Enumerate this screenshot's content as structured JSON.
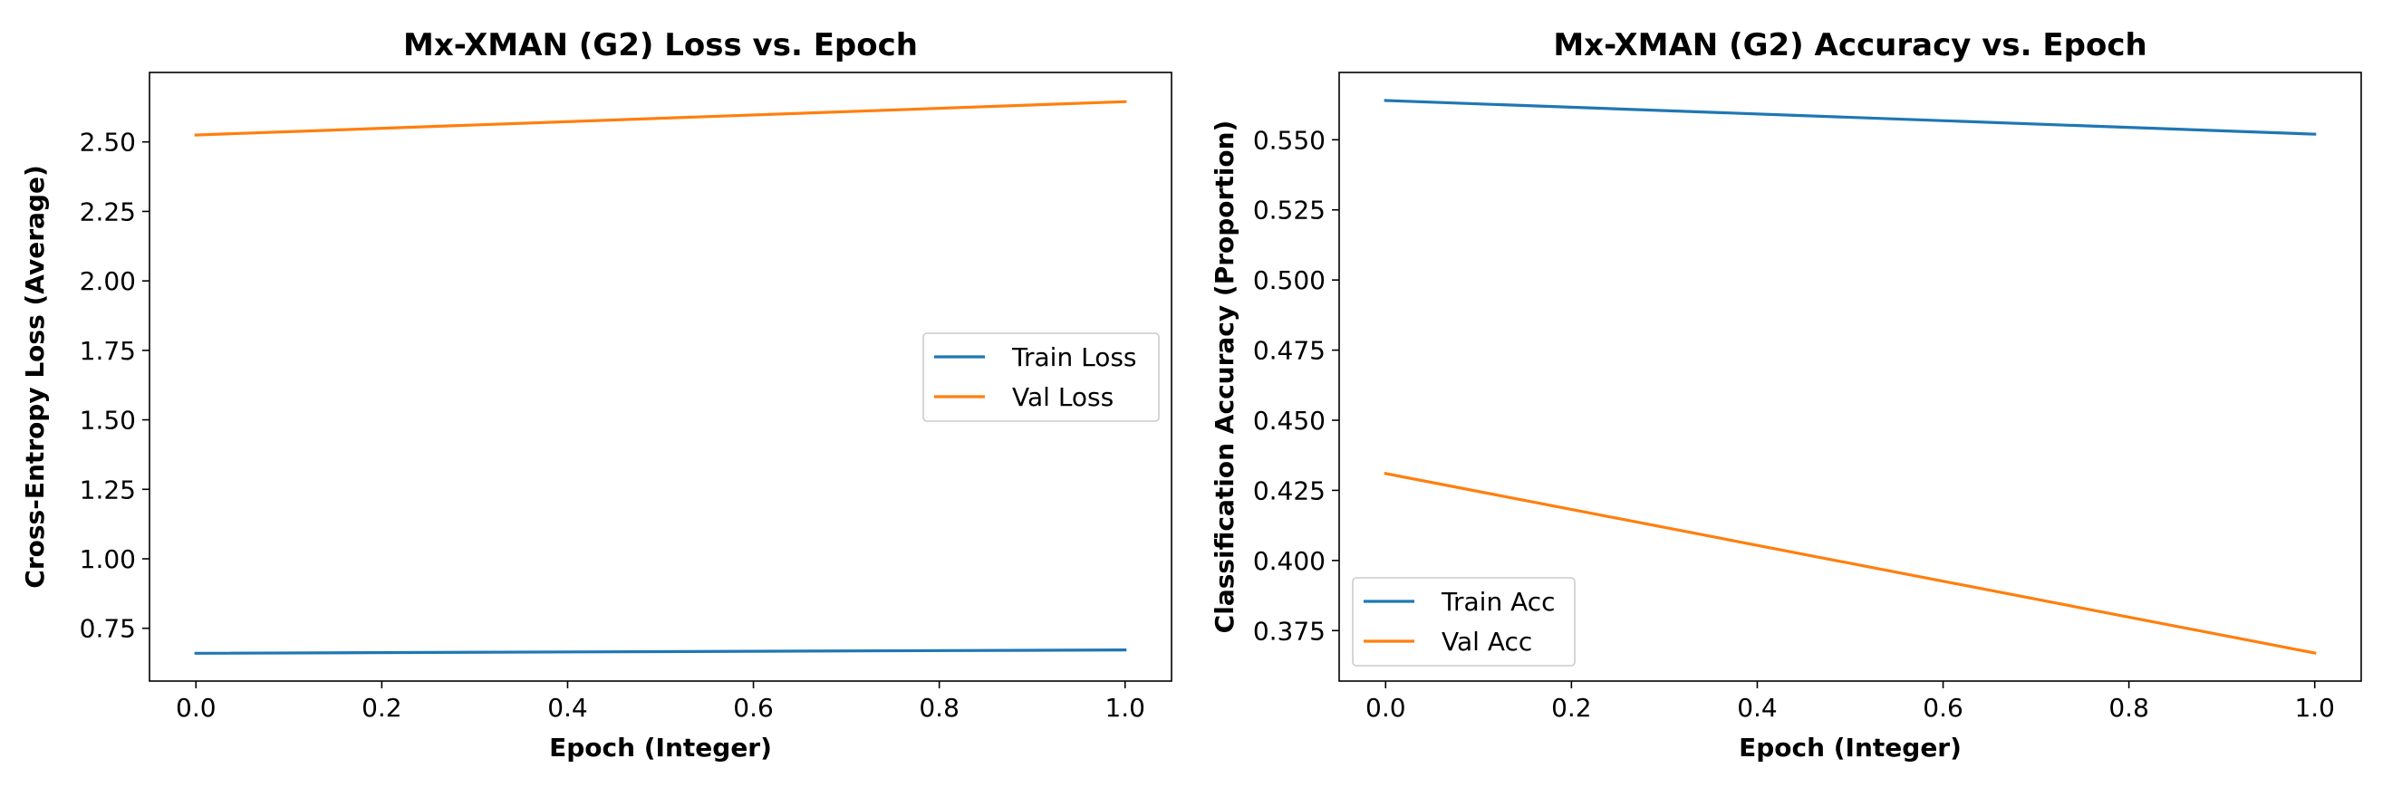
{
  "chart_data": [
    {
      "type": "line",
      "title": "Mx-XMAN (G2) Loss vs. Epoch",
      "xlabel": "Epoch (Integer)",
      "ylabel": "Cross-Entropy Loss (Average)",
      "x": [
        0,
        1
      ],
      "xlim": [
        -0.05,
        1.05
      ],
      "ylim": [
        0.56,
        2.75
      ],
      "xticks": [
        "0.0",
        "0.2",
        "0.4",
        "0.6",
        "0.8",
        "1.0"
      ],
      "yticks": [
        "0.75",
        "1.00",
        "1.25",
        "1.50",
        "1.75",
        "2.00",
        "2.25",
        "2.50"
      ],
      "grid": false,
      "legend": "center-right",
      "series": [
        {
          "name": "Train Loss",
          "color": "#1f77b4",
          "values": [
            0.66,
            0.672
          ]
        },
        {
          "name": "Val Loss",
          "color": "#ff7f0e",
          "values": [
            2.525,
            2.645
          ]
        }
      ]
    },
    {
      "type": "line",
      "title": "Mx-XMAN (G2) Accuracy vs. Epoch",
      "xlabel": "Epoch (Integer)",
      "ylabel": "Classification Accuracy (Proportion)",
      "x": [
        0,
        1
      ],
      "xlim": [
        -0.05,
        1.05
      ],
      "ylim": [
        0.357,
        0.574
      ],
      "xticks": [
        "0.0",
        "0.2",
        "0.4",
        "0.6",
        "0.8",
        "1.0"
      ],
      "yticks": [
        "0.375",
        "0.400",
        "0.425",
        "0.450",
        "0.475",
        "0.500",
        "0.525",
        "0.550"
      ],
      "grid": false,
      "legend": "lower-left",
      "series": [
        {
          "name": "Train Acc",
          "color": "#1f77b4",
          "values": [
            0.564,
            0.552
          ]
        },
        {
          "name": "Val Acc",
          "color": "#ff7f0e",
          "values": [
            0.431,
            0.367
          ]
        }
      ]
    }
  ]
}
